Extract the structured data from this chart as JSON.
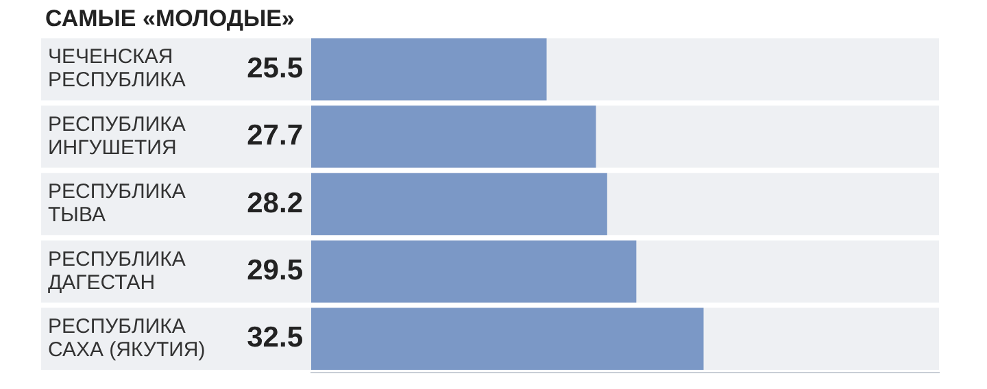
{
  "chart_data": {
    "type": "bar",
    "orientation": "horizontal",
    "title": "САМЫЕ «МОЛОДЫЕ»",
    "categories": [
      "ЧЕЧЕНСКАЯ РЕСПУБЛИКА",
      "РЕСПУБЛИКА ИНГУШЕТИЯ",
      "РЕСПУБЛИКА ТЫВА",
      "РЕСПУБЛИКА ДАГЕСТАН",
      "РЕСПУБЛИКА САХА (ЯКУТИЯ)"
    ],
    "values": [
      25.5,
      27.7,
      28.2,
      29.5,
      32.5
    ],
    "color": "#7b98c6",
    "xlim": [
      15,
      43
    ],
    "data_labels": true,
    "tick_labels": "y",
    "legend": false
  }
}
